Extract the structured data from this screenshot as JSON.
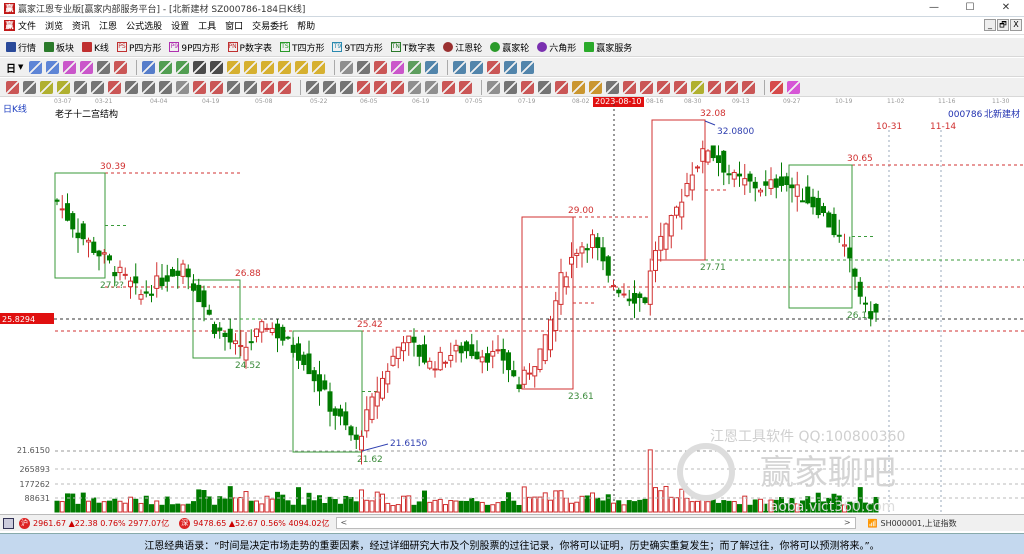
{
  "window": {
    "title": "赢家江恩专业版[赢家内部服务平台] - [北新建材  SZ000786-184日K线]",
    "min": "—",
    "max": "☐",
    "close": "✕"
  },
  "menu": [
    "文件",
    "浏览",
    "资讯",
    "江恩",
    "公式选股",
    "设置",
    "工具",
    "窗口",
    "交易委托",
    "帮助"
  ],
  "mdi_buttons": [
    "_",
    "🗗",
    "X"
  ],
  "toolbar1": [
    {
      "label": "行情",
      "icon": "grid-icon",
      "color": "#2a4a9a"
    },
    {
      "label": "板块",
      "icon": "blocks-icon",
      "color": "#2a7a2a"
    },
    {
      "label": "K线",
      "icon": "kline-icon",
      "color": "#c03030"
    },
    {
      "label": "P四方形",
      "icon": "PS",
      "color": "#c03030"
    },
    {
      "label": "9P四方形",
      "icon": "P9",
      "color": "#b030b0"
    },
    {
      "label": "P数字表",
      "icon": "PN",
      "color": "#c03030"
    },
    {
      "label": "T四方形",
      "icon": "TS",
      "color": "#2a9a2a"
    },
    {
      "label": "9T四方形",
      "icon": "T9",
      "color": "#2a8ab0"
    },
    {
      "label": "T数字表",
      "icon": "TN",
      "color": "#2a7a2a"
    },
    {
      "label": "江恩轮",
      "icon": "wheel-icon",
      "color": "#9a3030"
    },
    {
      "label": "赢家轮",
      "icon": "wheel-green-icon",
      "color": "#2a9a2a"
    },
    {
      "label": "六角形",
      "icon": "hexagon-icon",
      "color": "#7a30b0"
    },
    {
      "label": "赢家服务",
      "icon": "dollar-icon",
      "color": "#2aaa2a"
    }
  ],
  "toolbar2_period": "日",
  "toolbar2_colors": [
    "#3a6ad0",
    "#3a6ad0",
    "#c030c0",
    "#c030c0",
    "#555",
    "#c03030",
    "#3060c0",
    "#2a8a2a",
    "#2a8a2a",
    "#222",
    "#222",
    "#d0a000",
    "#d0a000",
    "#d0a000",
    "#d0a000",
    "#d0a000",
    "#d0a000",
    "#777",
    "#555",
    "#c03030",
    "#c030c0",
    "#3a8a3a",
    "#2a6a9a",
    "#2a6a9a",
    "#2a6a9a",
    "#c03030",
    "#2a6a9a",
    "#2a6a9a"
  ],
  "toolbar3_colors": [
    "#c03030",
    "#555",
    "#a0a000",
    "#a0a000",
    "#555",
    "#555",
    "#c03030",
    "#555",
    "#555",
    "#555",
    "#777",
    "#c03030",
    "#c03030",
    "#555",
    "#555",
    "#c03030",
    "#c03030",
    "#555",
    "#555",
    "#555",
    "#c03030",
    "#c03030",
    "#c03030",
    "#777",
    "#777",
    "#c03030",
    "#c03030",
    "#777",
    "#555",
    "#c03030",
    "#555",
    "#c03030",
    "#c08000",
    "#c08000",
    "#555",
    "#c03030",
    "#c03030",
    "#c03030",
    "#c03030",
    "#a0a000",
    "#c03030",
    "#c03030",
    "#c03030",
    "#d02020",
    "#d030d0"
  ],
  "toolbar3_percent": "%",
  "date_axis": [
    "03-07",
    "03-21",
    "04-04",
    "04-19",
    "05-08",
    "05-22",
    "06-05",
    "06-19",
    "07-05",
    "07-19",
    "08-02",
    "08-16",
    "08-30",
    "09-13",
    "09-27",
    "10-19",
    "11-02",
    "11-16",
    "11-30"
  ],
  "cursor_date": "2023-08-10",
  "chart": {
    "period_label": "日K线",
    "indicator_name": "老子十二宫结构",
    "stock_code": "000786",
    "stock_name": "北新建材",
    "current_price_tag": "25.8294",
    "low_axis_label": "21.6150",
    "volume_axis": [
      "265893",
      "177262",
      "88631"
    ],
    "future_dates": [
      "10-31",
      "11-14"
    ],
    "high_marker": "32.0800",
    "low_marker": "21.6150",
    "box_labels": {
      "b1_top": "30.39",
      "b1_bot": "27.??",
      "b2_top": "26.88",
      "b2_bot": "24.52",
      "b3_top": "25.42",
      "b3_bot": "21.62",
      "b4_top": "29.00",
      "b4_bot": "23.61",
      "b5_top": "32.08",
      "b5_bot": "27.71",
      "b6_top": "30.65",
      "b6_bot": "26.15"
    },
    "colors": {
      "up": "#d03030",
      "down": "#007a00",
      "box_green": "#3a9a3a",
      "box_red": "#d03030"
    }
  },
  "chart_data": {
    "type": "candlestick",
    "xlabels": [
      "03-07",
      "03-21",
      "04-04",
      "04-19",
      "05-08",
      "05-22",
      "06-05",
      "06-19",
      "07-05",
      "07-19",
      "08-02",
      "08-16",
      "08-30",
      "09-13",
      "09-27",
      "10-19"
    ],
    "ylim": [
      21.0,
      33.0
    ],
    "close_anchors": [
      [
        0,
        29.5
      ],
      [
        4,
        28.5
      ],
      [
        10,
        27.5
      ],
      [
        16,
        26.5
      ],
      [
        24,
        27.5
      ],
      [
        30,
        25.5
      ],
      [
        35,
        24.7
      ],
      [
        40,
        25.6
      ],
      [
        47,
        24.5
      ],
      [
        52,
        23
      ],
      [
        57,
        21.8
      ],
      [
        61,
        23.5
      ],
      [
        66,
        25.2
      ],
      [
        71,
        24.3
      ],
      [
        77,
        24.8
      ],
      [
        85,
        24.5
      ],
      [
        88,
        23.6
      ],
      [
        93,
        25
      ],
      [
        96,
        27
      ],
      [
        99,
        28
      ],
      [
        102,
        28.3
      ],
      [
        105,
        27
      ],
      [
        109,
        26.5
      ],
      [
        112,
        26.4
      ],
      [
        114,
        28
      ],
      [
        117,
        28.8
      ],
      [
        121,
        30.5
      ],
      [
        124,
        31.2
      ],
      [
        129,
        30.2
      ],
      [
        135,
        29.9
      ],
      [
        138,
        30.2
      ],
      [
        141,
        29.8
      ],
      [
        145,
        29.3
      ],
      [
        149,
        28.3
      ],
      [
        152,
        27.1
      ],
      [
        154,
        26.0
      ],
      [
        156,
        25.9
      ]
    ],
    "volume_range": [
      0,
      265893
    ]
  },
  "status": {
    "sh_index": "2961.67 ▲22.38 0.76% 2977.07亿",
    "sz_index": "9478.65 ▲52.67 0.56% 4094.02亿",
    "sh_label": "沪",
    "sz_label": "深",
    "scroll_left": "<",
    "scroll_right": ">",
    "right_index": "SH000001,上证指数"
  },
  "quote": "江恩经典语录：“时间是决定市场走势的重要因素，经过详细研究大市及个别股票的过往记录，你将可以证明，历史确实重复发生；而了解过往，你将可以预测将来。”。",
  "watermark": {
    "line1": "江恩工具软件  QQ:100800360",
    "line2": "赢家聊吧",
    "line3": "liaoba.vict360.com"
  }
}
